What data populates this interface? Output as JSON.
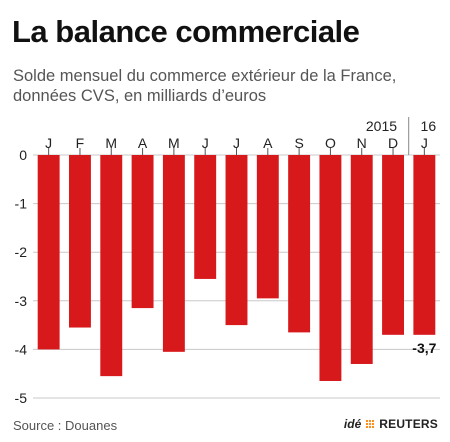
{
  "title": "La balance commerciale",
  "subtitle": "Solde mensuel du commerce extérieur de la France, données CVS, en milliards d’euros",
  "source": "Source : Douanes",
  "credit": {
    "ide": "idé",
    "agency": "REUTERS"
  },
  "colors": {
    "bar": "#d7191c",
    "grid": "#c8c8c8",
    "text": "#222222"
  },
  "chart_data": {
    "type": "bar",
    "categories": [
      "J",
      "F",
      "M",
      "A",
      "M",
      "J",
      "J",
      "A",
      "S",
      "O",
      "N",
      "D",
      "J"
    ],
    "values": [
      -4.0,
      -3.55,
      -4.55,
      -3.15,
      -4.05,
      -2.55,
      -3.5,
      -2.95,
      -3.65,
      -4.65,
      -4.3,
      -3.7,
      -3.7
    ],
    "year_labels": [
      {
        "label": "2015",
        "category_index": 11
      },
      {
        "label": "16",
        "category_index": 12
      }
    ],
    "value_labels": [
      {
        "category_index": 12,
        "text": "-3,7"
      }
    ],
    "yticks": [
      "0",
      "-1",
      "-2",
      "-3",
      "-4",
      "-5"
    ],
    "ylim": [
      -5,
      0
    ],
    "xlabel": "",
    "ylabel": "",
    "grid": true
  }
}
